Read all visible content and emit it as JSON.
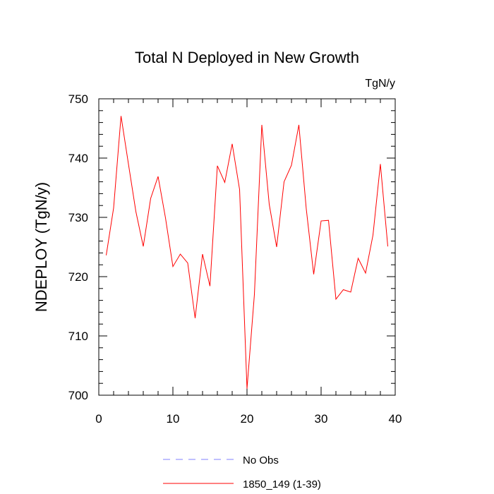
{
  "chart_data": {
    "type": "line",
    "title": "Total N Deployed in New Growth",
    "units_label": "TgN/y",
    "ylabel": "NDEPLOY  (TgN/y)",
    "xlabel": "",
    "xlim": [
      0,
      40
    ],
    "ylim": [
      700,
      750
    ],
    "x_ticks": [
      0,
      10,
      20,
      30,
      40
    ],
    "y_ticks": [
      700,
      710,
      720,
      730,
      740,
      750
    ],
    "x_tick_labels": [
      "0",
      "10",
      "20",
      "30",
      "40"
    ],
    "y_tick_labels": [
      "700",
      "710",
      "720",
      "730",
      "740",
      "750"
    ],
    "grid": false,
    "legend_position": "bottom-center",
    "series": [
      {
        "name": "1850_149 (1-39)",
        "color": "#ff0000",
        "style": "solid",
        "x": [
          1,
          2,
          3,
          4,
          5,
          6,
          7,
          8,
          9,
          10,
          11,
          12,
          13,
          14,
          15,
          16,
          17,
          18,
          19,
          20,
          21,
          22,
          23,
          24,
          25,
          26,
          27,
          28,
          29,
          30,
          31,
          32,
          33,
          34,
          35,
          36,
          37,
          38,
          39
        ],
        "y": [
          723.6,
          731.6,
          747.1,
          739.0,
          731.0,
          725.1,
          733.2,
          736.9,
          729.9,
          721.7,
          723.8,
          722.3,
          713.0,
          723.8,
          718.4,
          738.7,
          735.9,
          742.4,
          734.7,
          701.1,
          717.0,
          745.6,
          732.2,
          725.0,
          736.0,
          738.8,
          745.6,
          731.4,
          720.4,
          729.4,
          729.5,
          716.2,
          717.8,
          717.4,
          723.1,
          720.6,
          727.0,
          739.0,
          725.1
        ]
      },
      {
        "name": "No Obs",
        "color": "#8080ff",
        "style": "dashed",
        "x": [],
        "y": []
      }
    ],
    "legend": [
      {
        "label": "No Obs",
        "color": "#8080ff",
        "style": "dashed"
      },
      {
        "label": "1850_149 (1-39)",
        "color": "#ff0000",
        "style": "solid"
      }
    ]
  }
}
